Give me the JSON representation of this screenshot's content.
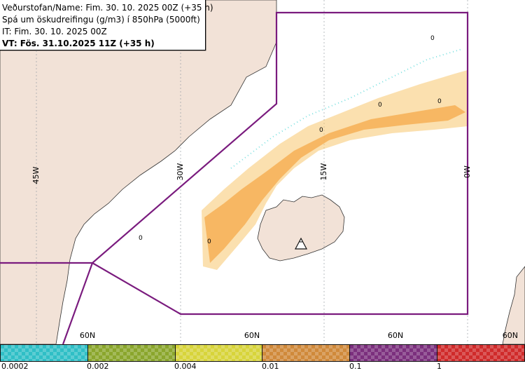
{
  "header": {
    "line1": "Veðurstofan/Name: Fim. 30. 10. 2025 00Z (+35 h)",
    "line2": "Spá um öskudreifingu (g/m3) í 850hPa (5000ft)",
    "line3": "IT: Fim. 30. 10. 2025 00Z",
    "line4": "VT: Fös. 31.10.2025 11Z (+35 h)"
  },
  "map": {
    "meridian_labels": [
      "45W",
      "30W",
      "15W",
      "0W"
    ],
    "parallel_labels": [
      "60N",
      "60N",
      "60N",
      "60N"
    ],
    "contour_labels": [
      "0",
      "0",
      "0",
      "0",
      "0",
      "0"
    ],
    "land_color": "#f2e2d7",
    "boundary_color": "#7a1b7e",
    "ash_colors": [
      "#f6a94a",
      "#f7c66e",
      "#c9dc6b",
      "#7ae0e0"
    ],
    "volcano_icon": "volcano-triangle-icon"
  },
  "scale": {
    "labels": [
      "0.0002",
      "0.002",
      "0.004",
      "0.01",
      "0.1",
      "1"
    ],
    "colors": [
      "#2fbfc6",
      "#8aa62c",
      "#d7d43a",
      "#d0893a",
      "#7b2f7d",
      "#d02a2a"
    ]
  }
}
